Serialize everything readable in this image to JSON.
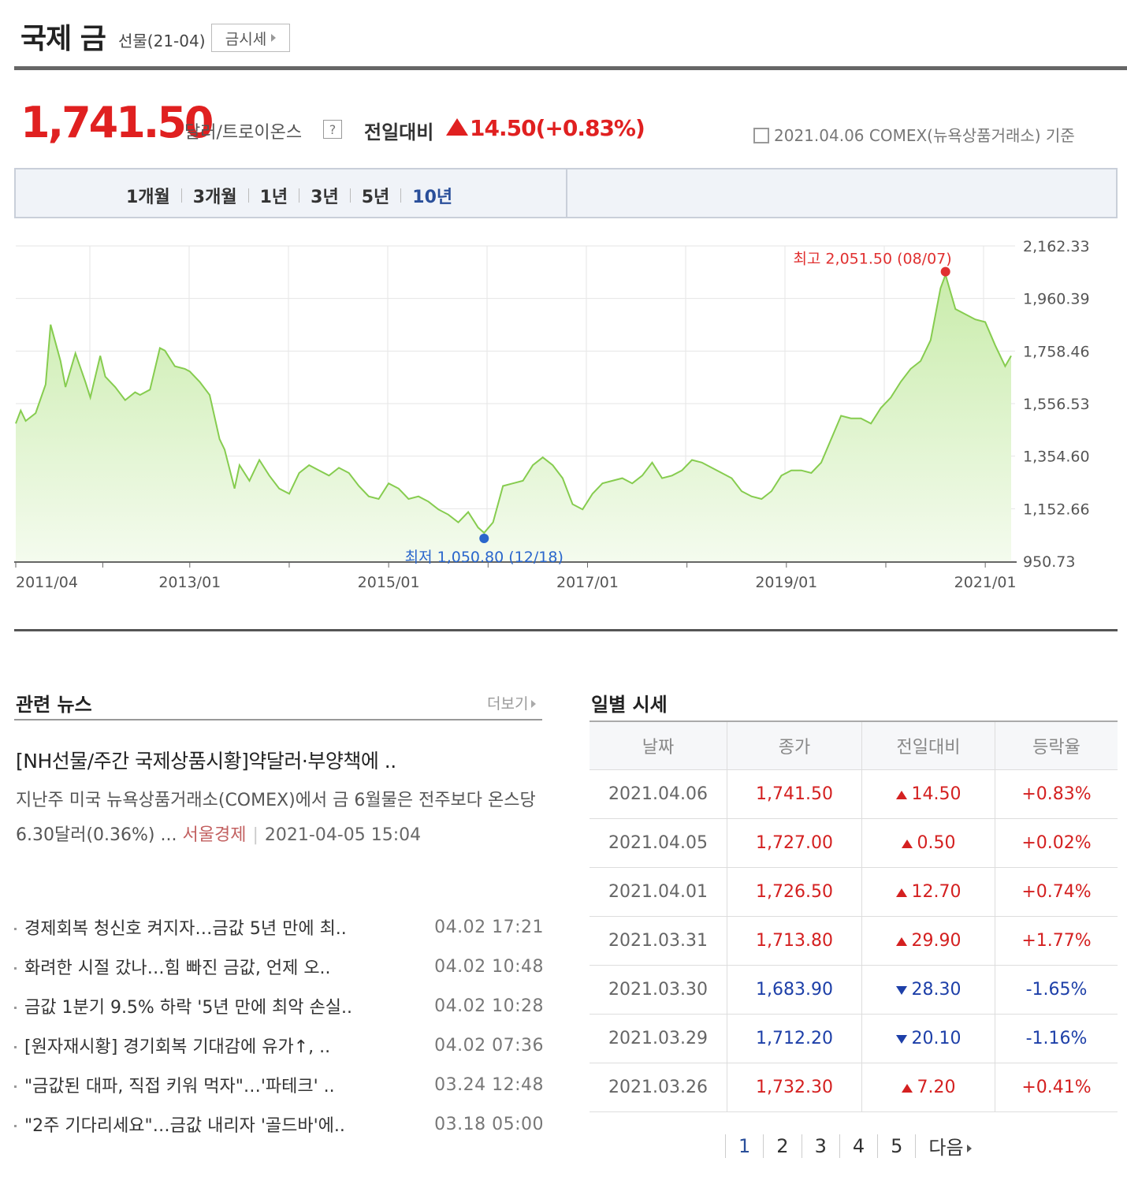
{
  "header": {
    "title": "국제 금",
    "subtitle": "선물(21-04)",
    "gold_price_button": "금시세"
  },
  "price": {
    "value": "1,741.50",
    "unit": "달러/트로이온스",
    "help": "?",
    "prev_label": "전일대비",
    "prev_change": "14.50",
    "prev_pct": "(+0.83%)",
    "source": "2021.04.06 COMEX(뉴욕상품거래소) 기준",
    "up_color": "#e02020"
  },
  "period_tabs": [
    {
      "label": "1개월",
      "active": false
    },
    {
      "label": "3개월",
      "active": false
    },
    {
      "label": "1년",
      "active": false
    },
    {
      "label": "3년",
      "active": false
    },
    {
      "label": "5년",
      "active": false
    },
    {
      "label": "10년",
      "active": true
    }
  ],
  "chart_data": {
    "type": "area",
    "title": "",
    "xlabel": "",
    "ylabel": "",
    "line_color": "#86cc4f",
    "fill_color": "#c9ecab",
    "ylim": [
      950.73,
      2162.33
    ],
    "y_ticks": [
      "2,162.33",
      "1,960.39",
      "1,758.46",
      "1,556.53",
      "1,354.60",
      "1,152.66",
      "950.73"
    ],
    "y_tick_values": [
      2162.33,
      1960.39,
      1758.46,
      1556.53,
      1354.6,
      1152.66,
      950.73
    ],
    "x_ticks": [
      "2011/04",
      "2013/01",
      "2015/01",
      "2017/01",
      "2019/01",
      "2021/01"
    ],
    "x_range": [
      2011.25,
      2021.3
    ],
    "x_tick_values": [
      2011.25,
      2013.0,
      2015.0,
      2017.0,
      2019.0,
      2021.0
    ],
    "grid": true,
    "high": {
      "label": "최고 2,051.50 (08/07)",
      "x": 2020.6,
      "y": 2051.5,
      "color": "#e03030"
    },
    "low": {
      "label": "최저 1,050.80 (12/18)",
      "x": 2015.96,
      "y": 1050.8,
      "color": "#2a66cc"
    },
    "series": [
      {
        "x": [
          2011.25,
          2011.3,
          2011.35,
          2011.45,
          2011.55,
          2011.6,
          2011.7,
          2011.75,
          2011.85,
          2011.95,
          2012.0,
          2012.1,
          2012.15,
          2012.25,
          2012.35,
          2012.45,
          2012.5,
          2012.6,
          2012.7,
          2012.75,
          2012.85,
          2012.95,
          2013.0,
          2013.1,
          2013.2,
          2013.3,
          2013.35,
          2013.45,
          2013.5,
          2013.6,
          2013.7,
          2013.8,
          2013.9,
          2014.0,
          2014.1,
          2014.2,
          2014.3,
          2014.4,
          2014.5,
          2014.6,
          2014.7,
          2014.8,
          2014.9,
          2015.0,
          2015.1,
          2015.2,
          2015.3,
          2015.4,
          2015.5,
          2015.6,
          2015.7,
          2015.8,
          2015.9,
          2015.96,
          2016.05,
          2016.15,
          2016.25,
          2016.35,
          2016.45,
          2016.55,
          2016.65,
          2016.75,
          2016.85,
          2016.95,
          2017.05,
          2017.15,
          2017.25,
          2017.35,
          2017.45,
          2017.55,
          2017.65,
          2017.75,
          2017.85,
          2017.95,
          2018.05,
          2018.15,
          2018.25,
          2018.35,
          2018.45,
          2018.55,
          2018.65,
          2018.75,
          2018.85,
          2018.95,
          2019.05,
          2019.15,
          2019.25,
          2019.35,
          2019.45,
          2019.55,
          2019.65,
          2019.75,
          2019.85,
          2019.95,
          2020.05,
          2020.15,
          2020.25,
          2020.35,
          2020.45,
          2020.55,
          2020.6,
          2020.7,
          2020.8,
          2020.9,
          2021.0,
          2021.1,
          2021.2,
          2021.26
        ],
        "values": [
          1480,
          1530,
          1490,
          1520,
          1630,
          1860,
          1720,
          1620,
          1750,
          1640,
          1580,
          1740,
          1660,
          1620,
          1570,
          1600,
          1590,
          1610,
          1770,
          1760,
          1700,
          1690,
          1680,
          1640,
          1590,
          1420,
          1380,
          1230,
          1320,
          1260,
          1340,
          1280,
          1230,
          1210,
          1290,
          1320,
          1300,
          1280,
          1310,
          1290,
          1240,
          1200,
          1190,
          1250,
          1230,
          1190,
          1200,
          1180,
          1150,
          1130,
          1100,
          1140,
          1080,
          1060,
          1100,
          1240,
          1250,
          1260,
          1320,
          1350,
          1320,
          1270,
          1170,
          1150,
          1210,
          1250,
          1260,
          1270,
          1250,
          1280,
          1330,
          1270,
          1280,
          1300,
          1340,
          1330,
          1310,
          1290,
          1270,
          1220,
          1200,
          1190,
          1220,
          1280,
          1300,
          1300,
          1290,
          1330,
          1420,
          1510,
          1500,
          1500,
          1480,
          1540,
          1580,
          1640,
          1690,
          1720,
          1800,
          2000,
          2051.5,
          1920,
          1900,
          1880,
          1870,
          1780,
          1700,
          1740
        ]
      }
    ]
  },
  "news": {
    "title": "관련 뉴스",
    "more": "더보기",
    "headline": "[NH선물/주간 국제상품시황]약달러·부양책에 ..",
    "summary": "지난주 미국 뉴욕상품거래소(COMEX)에서 금 6월물은 전주보다 온스당 6.30달러(0.36%) ...",
    "summary_press": "서울경제",
    "summary_date": "2021-04-05 15:04",
    "items": [
      {
        "title": "경제회복 청신호 켜지자…금값 5년 만에 최..",
        "date": "04.02 17:21"
      },
      {
        "title": "화려한 시절 갔나…힘 빠진 금값, 언제 오..",
        "date": "04.02 10:48"
      },
      {
        "title": "금값 1분기 9.5% 하락 '5년 만에 최악 손실..",
        "date": "04.02 10:28"
      },
      {
        "title": "[원자재시황] 경기회복 기대감에 유가↑, ..",
        "date": "04.02 07:36"
      },
      {
        "title": "\"금값된 대파, 직접 키워 먹자\"…'파테크' ..",
        "date": "03.24 12:48"
      },
      {
        "title": "\"2주 기다리세요\"…금값 내리자 '골드바'에..",
        "date": "03.18 05:00"
      }
    ]
  },
  "daily": {
    "title": "일별 시세",
    "headers": [
      "날짜",
      "종가",
      "전일대비",
      "등락율"
    ],
    "rows": [
      {
        "date": "2021.04.06",
        "close": "1,741.50",
        "change": "14.50",
        "rate": "+0.83%",
        "dir": "up"
      },
      {
        "date": "2021.04.05",
        "close": "1,727.00",
        "change": "0.50",
        "rate": "+0.02%",
        "dir": "up"
      },
      {
        "date": "2021.04.01",
        "close": "1,726.50",
        "change": "12.70",
        "rate": "+0.74%",
        "dir": "up"
      },
      {
        "date": "2021.03.31",
        "close": "1,713.80",
        "change": "29.90",
        "rate": "+1.77%",
        "dir": "up"
      },
      {
        "date": "2021.03.30",
        "close": "1,683.90",
        "change": "28.30",
        "rate": "-1.65%",
        "dir": "down"
      },
      {
        "date": "2021.03.29",
        "close": "1,712.20",
        "change": "20.10",
        "rate": "-1.16%",
        "dir": "down"
      },
      {
        "date": "2021.03.26",
        "close": "1,732.30",
        "change": "7.20",
        "rate": "+0.41%",
        "dir": "up"
      }
    ],
    "up_color": "#d42020",
    "down_color": "#1d3fa8"
  },
  "pager": {
    "pages": [
      "1",
      "2",
      "3",
      "4",
      "5"
    ],
    "current": "1",
    "next": "다음"
  }
}
